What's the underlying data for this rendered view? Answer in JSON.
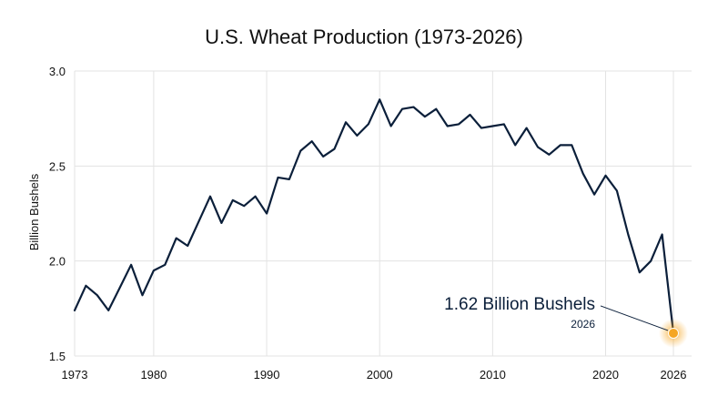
{
  "chart_data": {
    "type": "line",
    "title": "U.S. Wheat Production (1973-2026)",
    "xlabel": "",
    "ylabel": "Billion Bushels",
    "xlim": [
      1973,
      2026
    ],
    "ylim": [
      1.5,
      3.0
    ],
    "x_ticks": [
      "1973",
      "1980",
      "1990",
      "2000",
      "2010",
      "2020",
      "2026"
    ],
    "y_ticks": [
      "3.0",
      "2.5",
      "2.0",
      "1.5"
    ],
    "grid": true,
    "line_color": "#0b1f3a",
    "highlight_color": "#f5a623",
    "series": [
      {
        "x": [
          1973,
          1974,
          1975,
          1976,
          1977,
          1978,
          1979,
          1980,
          1981,
          1982,
          1983,
          1984,
          1985,
          1986,
          1987,
          1988,
          1989,
          1990,
          1991,
          1992,
          1993,
          1994,
          1995,
          1996,
          1997,
          1998,
          1999,
          2000,
          2001,
          2002,
          2003,
          2004,
          2005,
          2006,
          2007,
          2008,
          2009,
          2010,
          2011,
          2012,
          2013,
          2014,
          2015,
          2016,
          2017,
          2018,
          2019,
          2020,
          2021,
          2022,
          2023,
          2024,
          2025,
          2026
        ],
        "values": [
          1.74,
          1.87,
          1.82,
          1.74,
          1.86,
          1.98,
          1.82,
          1.95,
          1.98,
          2.12,
          2.08,
          2.21,
          2.34,
          2.2,
          2.32,
          2.29,
          2.34,
          2.25,
          2.44,
          2.43,
          2.58,
          2.63,
          2.55,
          2.59,
          2.73,
          2.66,
          2.72,
          2.85,
          2.71,
          2.8,
          2.81,
          2.76,
          2.8,
          2.71,
          2.72,
          2.77,
          2.7,
          2.71,
          2.72,
          2.61,
          2.7,
          2.6,
          2.56,
          2.61,
          2.61,
          2.46,
          2.35,
          2.45,
          2.37,
          2.14,
          1.94,
          2.0,
          2.14,
          1.62
        ]
      }
    ],
    "annotation": {
      "text": "1.62 Billion Bushels",
      "subtext": "2026",
      "x": 2026,
      "y": 1.62
    }
  }
}
